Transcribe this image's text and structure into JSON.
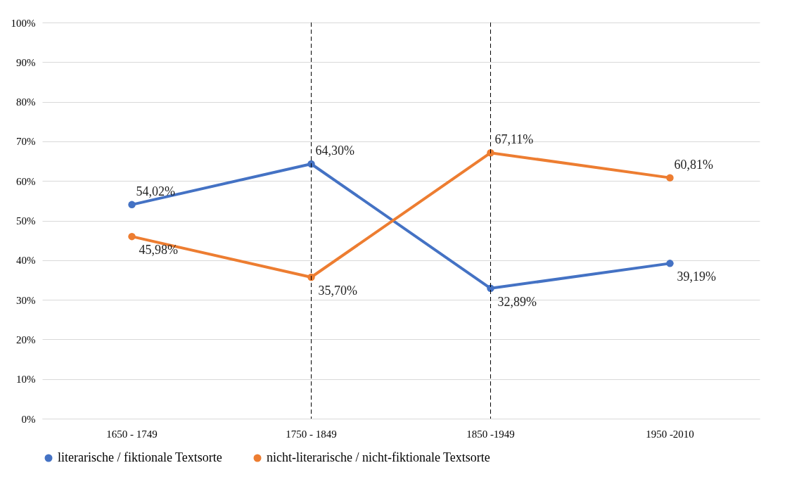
{
  "chart_data": {
    "type": "line",
    "categories": [
      "1650 - 1749",
      "1750 - 1849",
      "1850 -1949",
      "1950 -2010"
    ],
    "series": [
      {
        "name": "literarische / fiktionale Textsorte",
        "color": "#4472c4",
        "values": [
          54.02,
          64.3,
          32.89,
          39.19
        ],
        "value_labels": [
          "54,02%",
          "64,30%",
          "32,89%",
          "39,19%"
        ]
      },
      {
        "name": "nicht-literarische / nicht-fiktionale Textsorte",
        "color": "#ed7d31",
        "values": [
          45.98,
          35.7,
          67.11,
          60.81
        ],
        "value_labels": [
          "45,98%",
          "35,70%",
          "67,11%",
          "60,81%"
        ]
      }
    ],
    "ylim": [
      0,
      100
    ],
    "yticks": [
      {
        "value": 0,
        "label": "0%"
      },
      {
        "value": 10,
        "label": "10%"
      },
      {
        "value": 20,
        "label": "20%"
      },
      {
        "value": 30,
        "label": "30%"
      },
      {
        "value": 40,
        "label": "40%"
      },
      {
        "value": 50,
        "label": "50%"
      },
      {
        "value": 60,
        "label": "60%"
      },
      {
        "value": 70,
        "label": "70%"
      },
      {
        "value": 80,
        "label": "80%"
      },
      {
        "value": 90,
        "label": "90%"
      },
      {
        "value": 100,
        "label": "100%"
      }
    ],
    "grid": "y",
    "legend": "bottom",
    "marker": "circle",
    "line_style": "solid",
    "ref_lines": [
      {
        "axis": "x",
        "value": "1750 - 1849",
        "color": "#000000",
        "line_style": "dashed"
      },
      {
        "axis": "x",
        "value": "1850 -1949",
        "color": "#000000",
        "line_style": "dashed"
      }
    ]
  }
}
